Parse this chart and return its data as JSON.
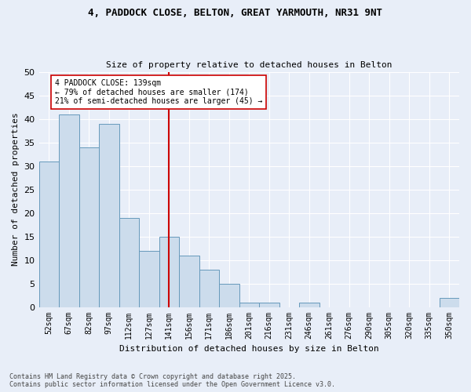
{
  "title1": "4, PADDOCK CLOSE, BELTON, GREAT YARMOUTH, NR31 9NT",
  "title2": "Size of property relative to detached houses in Belton",
  "xlabel": "Distribution of detached houses by size in Belton",
  "ylabel": "Number of detached properties",
  "categories": [
    "52sqm",
    "67sqm",
    "82sqm",
    "97sqm",
    "112sqm",
    "127sqm",
    "141sqm",
    "156sqm",
    "171sqm",
    "186sqm",
    "201sqm",
    "216sqm",
    "231sqm",
    "246sqm",
    "261sqm",
    "276sqm",
    "290sqm",
    "305sqm",
    "320sqm",
    "335sqm",
    "350sqm"
  ],
  "values": [
    31,
    41,
    34,
    39,
    19,
    12,
    15,
    11,
    8,
    5,
    1,
    1,
    0,
    1,
    0,
    0,
    0,
    0,
    0,
    0,
    2
  ],
  "bar_color": "#ccdcec",
  "bar_edge_color": "#6699bb",
  "vline_x": 6,
  "vline_color": "#cc0000",
  "annotation_text": "4 PADDOCK CLOSE: 139sqm\n← 79% of detached houses are smaller (174)\n21% of semi-detached houses are larger (45) →",
  "annotation_box_color": "#ffffff",
  "annotation_box_edge": "#cc0000",
  "ylim": [
    0,
    50
  ],
  "yticks": [
    0,
    5,
    10,
    15,
    20,
    25,
    30,
    35,
    40,
    45,
    50
  ],
  "bg_color": "#e8eef8",
  "grid_color": "#ffffff",
  "footer": "Contains HM Land Registry data © Crown copyright and database right 2025.\nContains public sector information licensed under the Open Government Licence v3.0."
}
